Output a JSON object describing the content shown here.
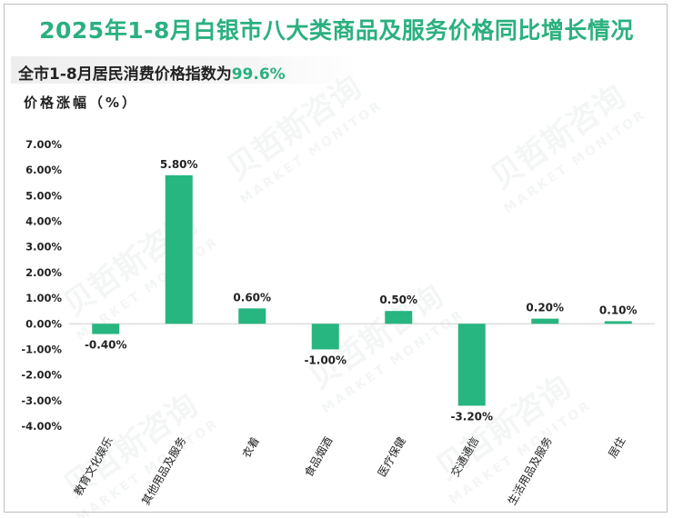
{
  "title": "2025年1-8月白银市八大类商品及服务价格同比增长情况",
  "subtitle": {
    "prefix": "全市1-8月居民消费价格指数为",
    "value": "99.6%"
  },
  "watermark": {
    "text_cn": "贝哲斯咨询",
    "text_en": "MARKET MONITOR"
  },
  "colors": {
    "bar": "#27b580",
    "title": "#2bb07f",
    "accent": "#2bb07f"
  },
  "chart_data": {
    "type": "bar",
    "title": "2025年1-8月白银市八大类商品及服务价格同比增长情况",
    "ylabel": "价格涨幅（%）",
    "xlabel": "",
    "categories": [
      "教育文化娱乐",
      "其他用品及服务",
      "衣着",
      "食品烟酒",
      "医疗保健",
      "交通通信",
      "生活用品及服务",
      "居住"
    ],
    "values": [
      -0.4,
      5.8,
      0.6,
      -1.0,
      0.5,
      -3.2,
      0.2,
      0.1
    ],
    "value_labels": [
      "-0.40%",
      "5.80%",
      "0.60%",
      "-1.00%",
      "0.50%",
      "-3.20%",
      "0.20%",
      "0.10%"
    ],
    "ylim": [
      -4.0,
      7.0
    ],
    "yticks": [
      7.0,
      6.0,
      5.0,
      4.0,
      3.0,
      2.0,
      1.0,
      0.0,
      -1.0,
      -2.0,
      -3.0,
      -4.0
    ],
    "ytick_labels": [
      "7.00%",
      "6.00%",
      "5.00%",
      "4.00%",
      "3.00%",
      "2.00%",
      "1.00%",
      "0.00%",
      "-1.00%",
      "-2.00%",
      "-3.00%",
      "-4.00%"
    ],
    "grid": false,
    "legend": "none"
  }
}
